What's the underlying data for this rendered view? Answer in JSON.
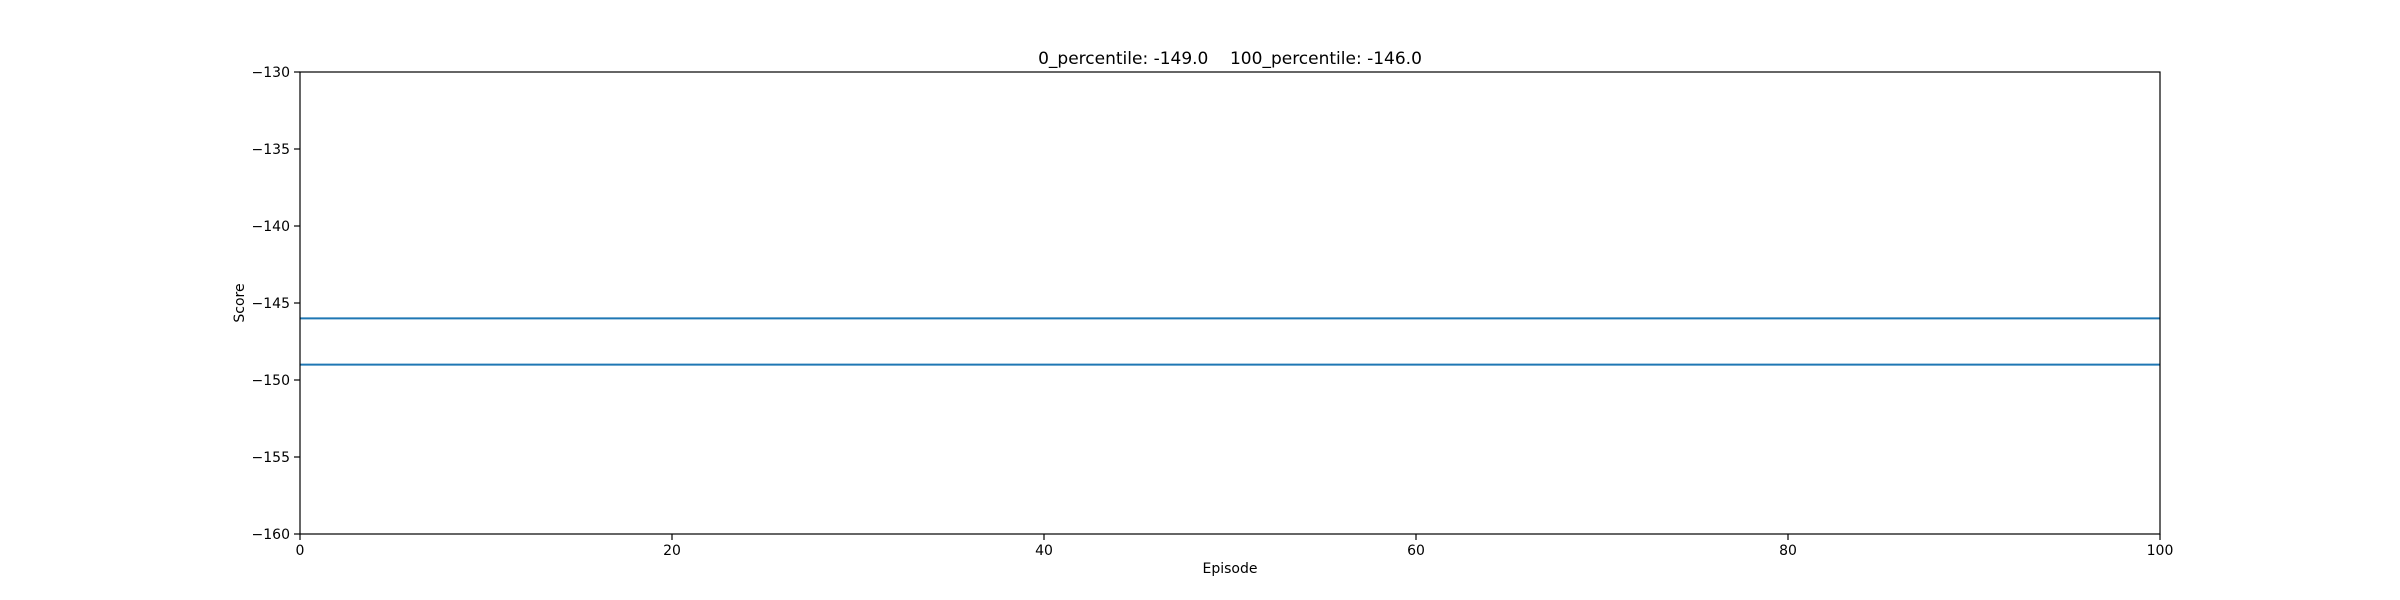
{
  "chart_data": {
    "type": "line",
    "title": "0_percentile: -149.0    100_percentile: -146.0",
    "xlabel": "Episode",
    "ylabel": "Score",
    "xlim": [
      0,
      100
    ],
    "ylim": [
      -160,
      -130
    ],
    "xticks": [
      0,
      20,
      40,
      60,
      80,
      100
    ],
    "yticks": [
      -160,
      -155,
      -150,
      -145,
      -140,
      -135,
      -130
    ],
    "ytick_labels": [
      "−160",
      "−155",
      "−150",
      "−145",
      "−140",
      "−135",
      "−130"
    ],
    "grid": false,
    "series": [
      {
        "x": [
          0,
          100
        ],
        "y": [
          -146.0,
          -146.0
        ],
        "color": "#1f77b4"
      },
      {
        "x": [
          0,
          100
        ],
        "y": [
          -149.0,
          -149.0
        ],
        "color": "#1f77b4"
      }
    ]
  }
}
